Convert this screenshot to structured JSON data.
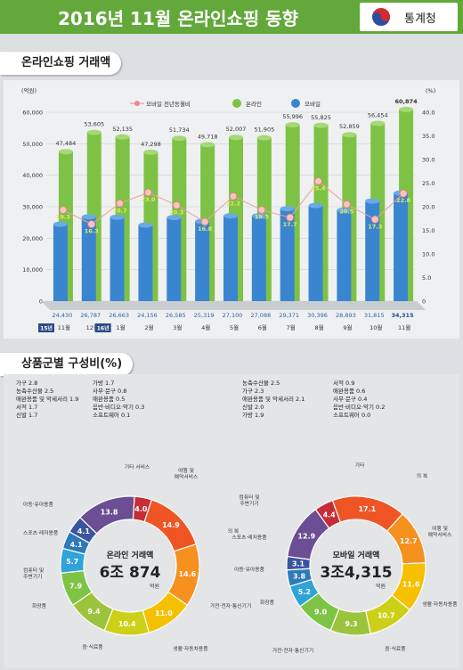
{
  "header": {
    "title": "2016년 11월 온라인쇼핑 동향",
    "agency": "통계청"
  },
  "sections": {
    "trade": "온라인쇼핑 거래액",
    "composition": "상품군별 구성비(%)"
  },
  "chart_data": [
    {
      "type": "bar",
      "title": "온라인쇼핑 거래액",
      "left_unit": "(억원)",
      "right_unit": "(%)",
      "ylim": [
        0,
        60000
      ],
      "y2lim": [
        0,
        40
      ],
      "yticks": [
        "60,000",
        "50,000",
        "40,000",
        "30,000",
        "20,000",
        "10,000",
        "0"
      ],
      "y2ticks": [
        "40.0",
        "35.0",
        "30.0",
        "25.0",
        "20.0",
        "15.0",
        "10.0",
        "5.0",
        "0"
      ],
      "categories": [
        "11월",
        "12월",
        "1월",
        "2월",
        "3월",
        "4월",
        "5월",
        "6월",
        "7월",
        "8월",
        "9월",
        "10월",
        "11월"
      ],
      "year_marks": [
        {
          "index": 0,
          "label": "15년"
        },
        {
          "index": 2,
          "label": "16년"
        }
      ],
      "legend": [
        "모바일 전년동월비",
        "온라인",
        "모바일"
      ],
      "series": [
        {
          "name": "온라인",
          "values": [
            47484,
            53605,
            52135,
            47298,
            51734,
            49718,
            52007,
            51905,
            55996,
            55825,
            52859,
            56454,
            60874
          ],
          "labels": [
            "47,484",
            "53,605",
            "52,135",
            "47,298",
            "51,734",
            "49,718",
            "52,007",
            "51,905",
            "55,996",
            "55,825",
            "52,859",
            "56,454",
            "60,874"
          ],
          "color": "#7dc244"
        },
        {
          "name": "모바일",
          "values": [
            24430,
            26787,
            26663,
            24156,
            26585,
            25319,
            27100,
            27088,
            29371,
            30396,
            28893,
            31815,
            34315
          ],
          "labels": [
            "24,430",
            "26,787",
            "26,663",
            "24,156",
            "26,585",
            "25,319",
            "27,100",
            "27,088",
            "29,371",
            "30,396",
            "28,893",
            "31,815",
            "34,315"
          ],
          "color": "#3a85cf"
        },
        {
          "name": "모바일 전년동월비",
          "values": [
            19.3,
            16.3,
            20.7,
            23.0,
            20.3,
            16.8,
            22.2,
            19.3,
            17.7,
            25.4,
            20.5,
            17.3,
            22.8
          ],
          "labels": [
            "19.3",
            "16.3",
            "20.7",
            "23.0",
            "20.3",
            "16.8",
            "22.2",
            "19.3",
            "17.7",
            "25.4",
            "20.5",
            "17.3",
            "22.8"
          ],
          "color": "#e98c8c"
        }
      ]
    },
    {
      "type": "pie",
      "title": "온라인 거래액",
      "total": "6조 874",
      "unit": "억원",
      "slices": [
        {
          "label": "음·식료품",
          "value": 9.4,
          "color": "#9bc43c"
        },
        {
          "label": "화장품",
          "value": 7.9,
          "color": "#7ec346"
        },
        {
          "label": "컴퓨터 및 주변기기",
          "value": 5.7,
          "color": "#30a3d9"
        },
        {
          "label": "스포츠·레저용품",
          "value": 4.1,
          "color": "#2d79ba"
        },
        {
          "label": "",
          "value": 4.1,
          "color": "#3a55a0"
        },
        {
          "label": "아동·유아용품",
          "value": 13.8,
          "color": "#6b4e93"
        },
        {
          "label": "기타 서비스",
          "value": 4.0,
          "color": "#c52e37"
        },
        {
          "label": "여행 및 예약서비스",
          "value": 14.9,
          "color": "#ef5524"
        },
        {
          "label": "의 복",
          "value": 14.6,
          "color": "#f6901e"
        },
        {
          "label": "가전·전자·통신기기",
          "value": 11.0,
          "color": "#f5c000"
        },
        {
          "label": "생활·자동차용품",
          "value": 10.4,
          "color": "#cdd019"
        }
      ]
    },
    {
      "type": "pie",
      "title": "모바일 거래액",
      "total": "3조4,315",
      "unit": "억원",
      "slices": [
        {
          "label": "화장품",
          "value": 9.0,
          "color": "#7ec346"
        },
        {
          "label": "아동·유아용품",
          "value": 5.2,
          "color": "#30a3d9"
        },
        {
          "label": "스포츠·레저용품",
          "value": 3.8,
          "color": "#2d79ba"
        },
        {
          "label": "",
          "value": 3.1,
          "color": "#3a55a0"
        },
        {
          "label": "컴퓨터 및 주변기기",
          "value": 12.9,
          "color": "#6b4e93"
        },
        {
          "label": "기타",
          "value": 4.4,
          "color": "#c52e37"
        },
        {
          "label": "의 복",
          "value": 17.1,
          "color": "#ef5524"
        },
        {
          "label": "여행 및 예약서비스",
          "value": 12.7,
          "color": "#f6901e"
        },
        {
          "label": "생활·자동차용품",
          "value": 11.6,
          "color": "#f5c000"
        },
        {
          "label": "음·식료품",
          "value": 10.7,
          "color": "#cdd019"
        },
        {
          "label": "가전·전자·통신기기",
          "value": 9.3,
          "color": "#9bc43c"
        }
      ]
    }
  ],
  "notes": {
    "online": [
      "가구 2.8",
      "농축수산물 2.5",
      "애완용품 및 악세서리 1.9",
      "서적 1.7",
      "신발 1.7",
      "가방 1.7",
      "사무·문구 0.8",
      "애완용품 0.5",
      "음반·비디오·악기 0.3",
      "소프트웨어 0.1"
    ],
    "mobile": [
      "농축수산물 2.5",
      "가구 2.3",
      "애완용품 및 악세서리 2.1",
      "신발 2.0",
      "가방 1.9",
      "서적 0.9",
      "애완용품 0.6",
      "사무·문구 0.4",
      "음반·비디오·악기 0.2",
      "소프트웨어 0.0"
    ]
  }
}
